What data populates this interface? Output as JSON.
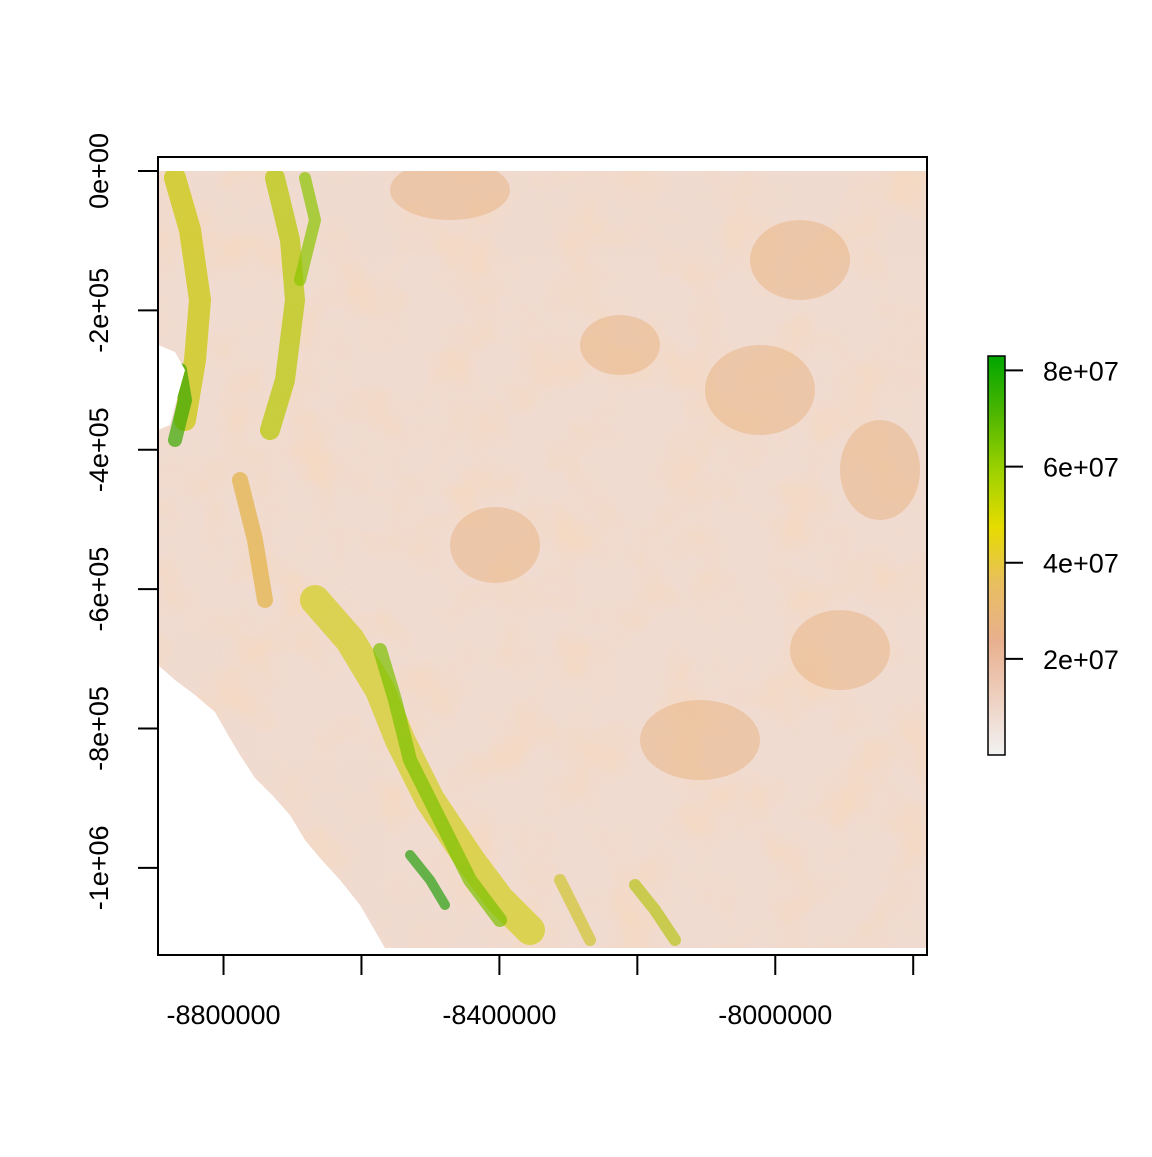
{
  "chart_data": {
    "type": "heatmap",
    "title": "",
    "xlabel": "",
    "ylabel": "",
    "xlim": [
      -8895000,
      -7780000
    ],
    "ylim": [
      -1125000,
      20000
    ],
    "x_ticks": [
      {
        "value": -8800000,
        "label": "-8800000"
      },
      {
        "value": -8600000,
        "label": ""
      },
      {
        "value": -8400000,
        "label": "-8400000"
      },
      {
        "value": -8200000,
        "label": ""
      },
      {
        "value": -8000000,
        "label": "-8000000"
      },
      {
        "value": -7800000,
        "label": ""
      }
    ],
    "y_ticks": [
      {
        "value": 0,
        "label": "0e+00"
      },
      {
        "value": -200000,
        "label": "-2e+05"
      },
      {
        "value": -400000,
        "label": "-4e+05"
      },
      {
        "value": -600000,
        "label": "-6e+05"
      },
      {
        "value": -800000,
        "label": "-8e+05"
      },
      {
        "value": -1000000,
        "label": "-1e+06"
      }
    ],
    "raster_extent": {
      "x": [
        -8895000,
        -7780000
      ],
      "y": [
        -1115000,
        0
      ]
    },
    "legend": {
      "position": "right",
      "range": [
        0,
        83000000
      ],
      "ticks": [
        {
          "value": 20000000,
          "label": "2e+07"
        },
        {
          "value": 40000000,
          "label": "4e+07"
        },
        {
          "value": 60000000,
          "label": "6e+07"
        },
        {
          "value": 80000000,
          "label": "8e+07"
        }
      ],
      "colors": [
        "#f2f2f2",
        "#eed0c0",
        "#e8b08e",
        "#e8be60",
        "#e6dc00",
        "#9cd100",
        "#4db600",
        "#00a600"
      ]
    },
    "grid": false
  }
}
